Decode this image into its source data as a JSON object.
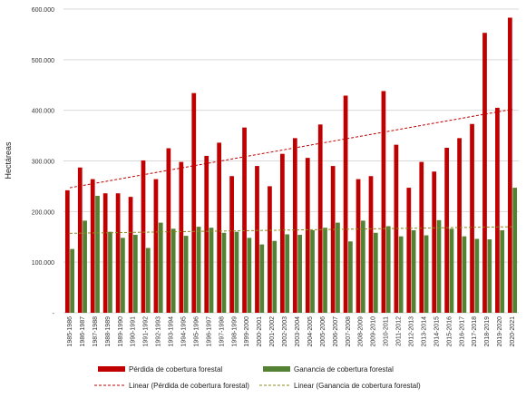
{
  "chart_data": {
    "type": "bar",
    "ylabel": "Hectáreas",
    "ylim": [
      0,
      600000
    ],
    "ytick_values": [
      0,
      100000,
      200000,
      300000,
      400000,
      500000,
      600000
    ],
    "ytick_labels": [
      "-",
      "100.000",
      "200.000",
      "300.000",
      "400.000",
      "500.000",
      "600.000"
    ],
    "grid": "horizontal",
    "legend_position": "bottom",
    "categories": [
      "1985-1986",
      "1986-1987",
      "1987-1988",
      "1988-1989",
      "1989-1990",
      "1990-1991",
      "1991-1992",
      "1992-1993",
      "1993-1994",
      "1994-1995",
      "1995-1996",
      "1996-1997",
      "1997-1998",
      "1998-1999",
      "1999-2000",
      "2000-2001",
      "2001-2002",
      "2002-2003",
      "2003-2004",
      "2004-2005",
      "2005-2006",
      "2006-2007",
      "2007-2008",
      "2008-2009",
      "2009-2010",
      "2010-2011",
      "2011-2012",
      "2012-2013",
      "2013-2014",
      "2014-2015",
      "2015-2016",
      "2016-2017",
      "2017-2018",
      "2018-2019",
      "2019-2020",
      "2020-2021"
    ],
    "series": [
      {
        "name": "Pérdida de cobertura forestal",
        "color": "#c00000",
        "values": [
          242000,
          287000,
          264000,
          236000,
          236000,
          229000,
          301000,
          264000,
          325000,
          298000,
          434000,
          310000,
          336000,
          270000,
          366000,
          290000,
          250000,
          314000,
          345000,
          306000,
          372000,
          290000,
          429000,
          264000,
          270000,
          438000,
          332000,
          247000,
          298000,
          279000,
          326000,
          345000,
          373000,
          553000,
          405000,
          583000
        ]
      },
      {
        "name": "Ganancia de cobertura forestal",
        "color": "#548235",
        "values": [
          126000,
          182000,
          231000,
          160000,
          148000,
          154000,
          128000,
          178000,
          166000,
          152000,
          170000,
          168000,
          158000,
          160000,
          148000,
          135000,
          142000,
          155000,
          154000,
          163000,
          168000,
          178000,
          141000,
          182000,
          158000,
          171000,
          151000,
          163000,
          153000,
          183000,
          166000,
          151000,
          146000,
          145000,
          163000,
          247000
        ]
      }
    ],
    "trendlines": [
      {
        "name": "Linear (Pérdida de cobertura forestal)",
        "color": "#c00000",
        "start": 247000,
        "end": 402000
      },
      {
        "name": "Linear (Ganancia de cobertura forestal)",
        "color": "#8a8a1a",
        "start": 157000,
        "end": 170000
      }
    ]
  }
}
